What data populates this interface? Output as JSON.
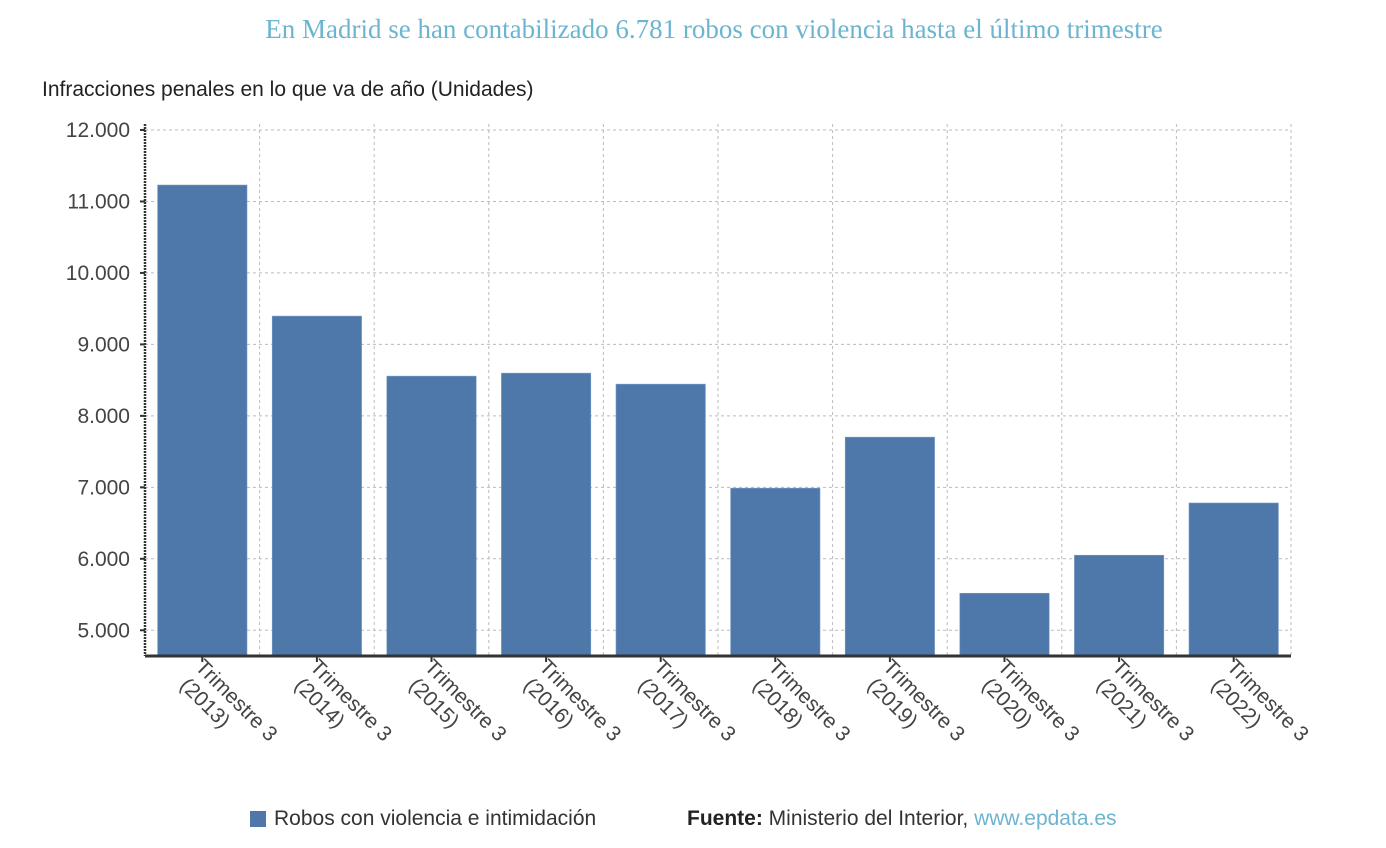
{
  "title": "En Madrid se han contabilizado 6.781 robos con violencia hasta el último trimestre",
  "chart_data": {
    "type": "bar",
    "title": "En Madrid se han contabilizado 6.781 robos con violencia hasta el último trimestre",
    "ylabel": "Infracciones penales en lo que va de año (Unidades)",
    "xlabel": "",
    "categories": [
      [
        "Trimestre 3",
        "(2013)"
      ],
      [
        "Trimestre 3",
        "(2014)"
      ],
      [
        "Trimestre 3",
        "(2015)"
      ],
      [
        "Trimestre 3",
        "(2016)"
      ],
      [
        "Trimestre 3",
        "(2017)"
      ],
      [
        "Trimestre 3",
        "(2018)"
      ],
      [
        "Trimestre 3",
        "(2019)"
      ],
      [
        "Trimestre 3",
        "(2020)"
      ],
      [
        "Trimestre 3",
        "(2021)"
      ],
      [
        "Trimestre 3",
        "(2022)"
      ]
    ],
    "series": [
      {
        "name": "Robos con violencia e intimidación",
        "color": "#4e77aa",
        "values": [
          11230,
          9396,
          8556,
          8598,
          8444,
          6988,
          7702,
          5518,
          6050,
          6781
        ]
      }
    ],
    "ylim": [
      4640,
      12000
    ],
    "yticks": [
      5000,
      6000,
      7000,
      8000,
      9000,
      10000,
      11000,
      12000
    ],
    "ytick_labels": [
      "5.000",
      "6.000",
      "7.000",
      "8.000",
      "9.000",
      "10.000",
      "11.000",
      "12.000"
    ],
    "grid": true,
    "legend": "bottom"
  },
  "legend": {
    "label": "Robos con violencia e intimidación"
  },
  "source": {
    "prefix": "Fuente:",
    "text": " Ministerio del Interior, ",
    "link": "www.epdata.es"
  }
}
